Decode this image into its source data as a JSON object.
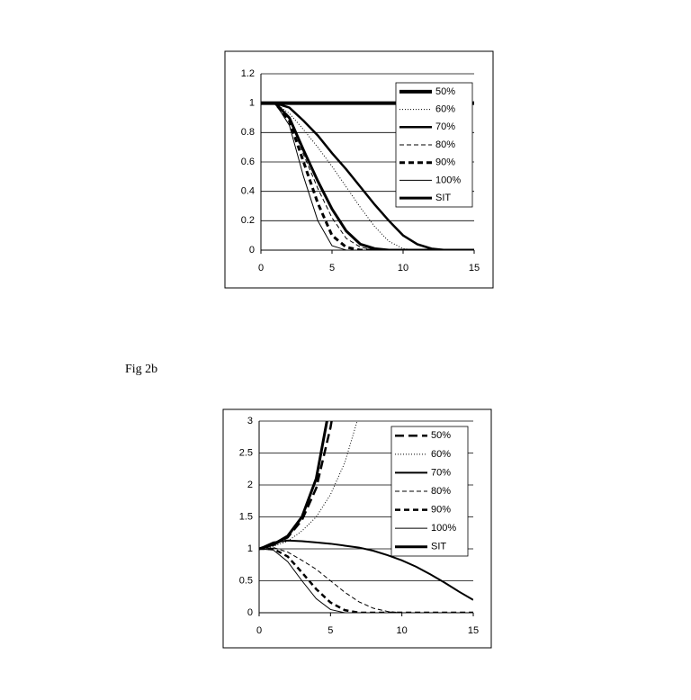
{
  "figure_label": "Fig 2b",
  "chart_data": [
    {
      "type": "line",
      "xlim": [
        0,
        15
      ],
      "xticks": [
        0,
        5,
        10,
        15
      ],
      "ylim": [
        0,
        1.2
      ],
      "yticks": [
        0,
        0.2,
        0.4,
        0.6,
        0.8,
        1,
        1.2
      ],
      "grid": true,
      "legend": "upper right",
      "x": [
        0,
        1,
        2,
        3,
        4,
        5,
        6,
        7,
        8,
        9,
        10,
        11,
        12,
        13,
        14,
        15
      ],
      "series": [
        {
          "name": "50%",
          "color": "#000000",
          "style": "solid",
          "width": 4,
          "values": [
            1,
            1,
            1,
            1,
            1,
            1,
            1,
            1,
            1,
            1,
            1,
            1,
            1,
            1,
            1,
            1
          ]
        },
        {
          "name": "60%",
          "color": "#000000",
          "style": "dotted",
          "width": 1,
          "values": [
            1,
            1,
            0.93,
            0.82,
            0.7,
            0.57,
            0.43,
            0.29,
            0.16,
            0.06,
            0.01,
            0,
            0,
            0,
            0,
            0
          ]
        },
        {
          "name": "70%",
          "color": "#000000",
          "style": "solid",
          "width": 2.5,
          "values": [
            1,
            1,
            0.97,
            0.88,
            0.78,
            0.66,
            0.55,
            0.43,
            0.31,
            0.2,
            0.1,
            0.04,
            0.01,
            0,
            0,
            0
          ]
        },
        {
          "name": "80%",
          "color": "#000000",
          "style": "dashed",
          "width": 1,
          "values": [
            1,
            1,
            0.9,
            0.65,
            0.42,
            0.22,
            0.08,
            0.02,
            0,
            0,
            0,
            0,
            0,
            0,
            0,
            0
          ]
        },
        {
          "name": "90%",
          "color": "#000000",
          "style": "bold-dashed",
          "width": 3,
          "values": [
            1,
            1,
            0.88,
            0.6,
            0.32,
            0.1,
            0.02,
            0,
            0,
            0,
            0,
            0,
            0,
            0,
            0,
            0
          ]
        },
        {
          "name": "100%",
          "color": "#000000",
          "style": "solid",
          "width": 1,
          "values": [
            1,
            1,
            0.85,
            0.5,
            0.2,
            0.03,
            0,
            0,
            0,
            0,
            0,
            0,
            0,
            0,
            0,
            0
          ]
        },
        {
          "name": "SIT",
          "color": "#000000",
          "style": "solid",
          "width": 3,
          "values": [
            1,
            1,
            0.9,
            0.68,
            0.47,
            0.28,
            0.13,
            0.04,
            0.01,
            0,
            0,
            0,
            0,
            0,
            0,
            0
          ]
        }
      ]
    },
    {
      "type": "line",
      "xlim": [
        0,
        15
      ],
      "xticks": [
        0,
        5,
        10,
        15
      ],
      "ylim": [
        0,
        3
      ],
      "yticks": [
        0,
        0.5,
        1,
        1.5,
        2,
        2.5,
        3
      ],
      "grid": true,
      "legend": "upper right",
      "x": [
        0,
        1,
        2,
        3,
        4,
        5,
        6,
        7,
        8,
        9,
        10,
        11,
        12,
        13,
        14,
        15
      ],
      "series": [
        {
          "name": "50%",
          "color": "#000000",
          "style": "long-dashed",
          "width": 2.5,
          "values": [
            1,
            1.06,
            1.18,
            1.45,
            1.95,
            2.9,
            4.2,
            null,
            null,
            null,
            null,
            null,
            null,
            null,
            null,
            null
          ]
        },
        {
          "name": "60%",
          "color": "#000000",
          "style": "dotted",
          "width": 1,
          "values": [
            1,
            1.04,
            1.12,
            1.28,
            1.5,
            1.85,
            2.35,
            3.1,
            null,
            null,
            null,
            null,
            null,
            null,
            null,
            null
          ]
        },
        {
          "name": "70%",
          "color": "#000000",
          "style": "solid",
          "width": 2,
          "values": [
            1,
            1.1,
            1.13,
            1.12,
            1.1,
            1.08,
            1.05,
            1.02,
            0.97,
            0.9,
            0.82,
            0.72,
            0.6,
            0.47,
            0.33,
            0.2
          ]
        },
        {
          "name": "80%",
          "color": "#000000",
          "style": "dashed",
          "width": 1,
          "values": [
            1,
            1.02,
            0.95,
            0.82,
            0.68,
            0.5,
            0.32,
            0.17,
            0.07,
            0.02,
            0,
            0,
            0,
            0,
            0,
            0
          ]
        },
        {
          "name": "90%",
          "color": "#000000",
          "style": "bold-dashed",
          "width": 2.5,
          "values": [
            1,
            1,
            0.88,
            0.63,
            0.37,
            0.16,
            0.04,
            0,
            0,
            0,
            0,
            0,
            0,
            0,
            0,
            0
          ]
        },
        {
          "name": "100%",
          "color": "#000000",
          "style": "solid",
          "width": 1,
          "values": [
            1,
            0.98,
            0.8,
            0.5,
            0.22,
            0.05,
            0,
            0,
            0,
            0,
            0,
            0,
            0,
            0,
            0,
            0
          ]
        },
        {
          "name": "SIT",
          "color": "#000000",
          "style": "solid",
          "width": 3,
          "values": [
            1,
            1.07,
            1.2,
            1.5,
            2.1,
            3.3,
            null,
            null,
            null,
            null,
            null,
            null,
            null,
            null,
            null,
            null
          ]
        }
      ]
    }
  ]
}
